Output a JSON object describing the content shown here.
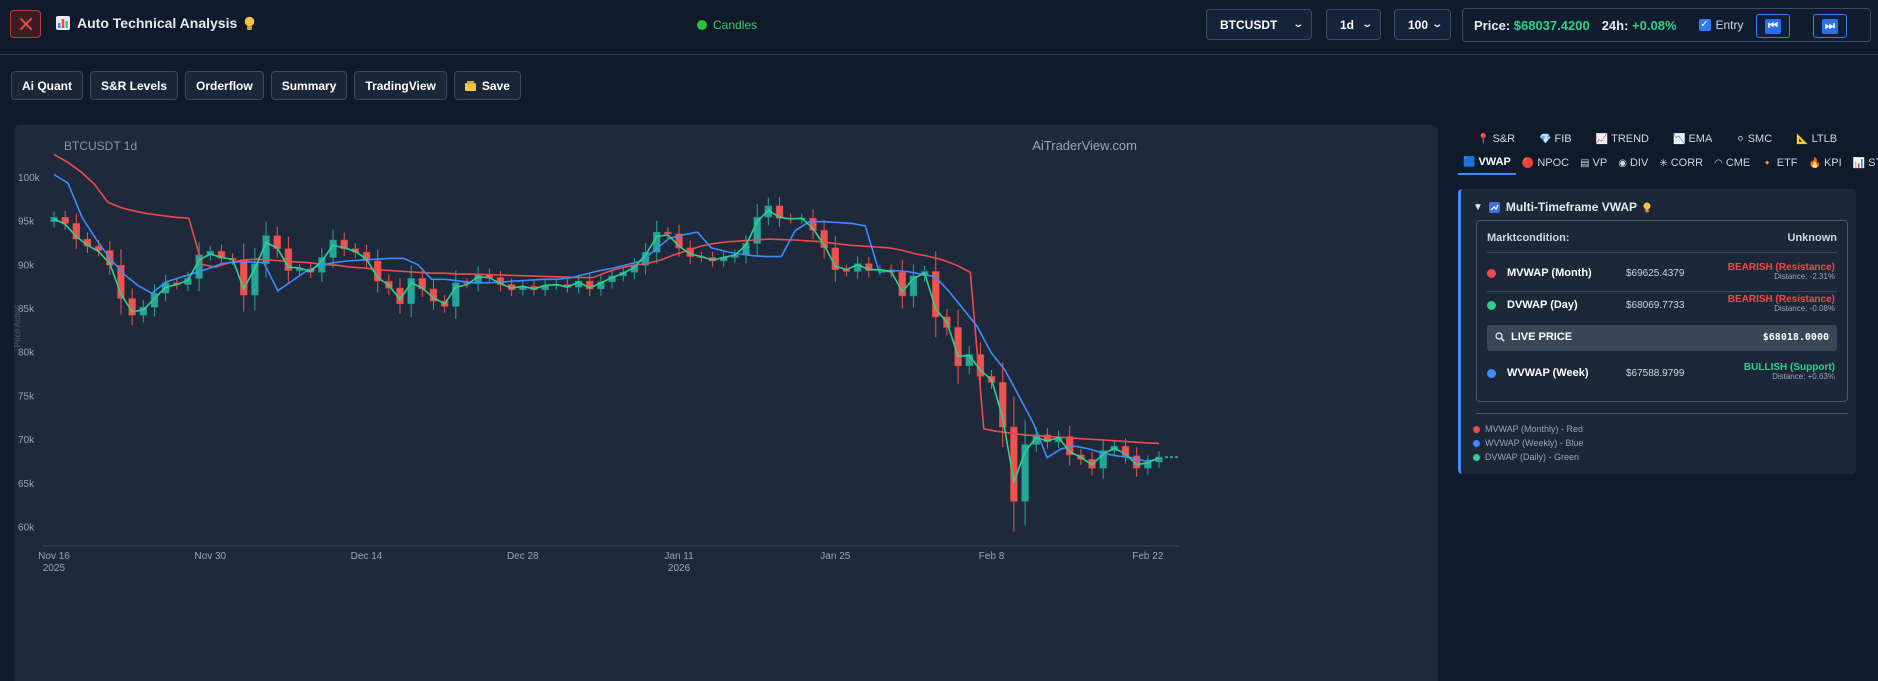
{
  "header": {
    "title": "Auto Technical Analysis",
    "mode_label": "Candles",
    "symbol": "BTCUSDT",
    "interval": "1d",
    "limit": "100",
    "price_label": "Price:",
    "price_value": "$68037.4200",
    "change_label": "24h:",
    "change_value": "+0.08%",
    "entry_label": "Entry"
  },
  "toolbar": {
    "buttons": [
      "Ai Quant",
      "S&R Levels",
      "Orderflow",
      "Summary",
      "TradingView",
      "Save"
    ]
  },
  "side_tabs": {
    "row1": [
      "S&R",
      "FIB",
      "TREND",
      "EMA",
      "SMC",
      "LTLB"
    ],
    "row2": [
      "VWAP",
      "NPOC",
      "VP",
      "DIV",
      "CORR",
      "CME",
      "ETF",
      "KPI",
      "STATS"
    ],
    "active": "VWAP"
  },
  "vwap_panel": {
    "title": "Multi-Timeframe VWAP",
    "market_label": "Marktcondition:",
    "market_value": "Unknown",
    "rows": [
      {
        "name": "MVWAP (Month)",
        "price": "$69625.4379",
        "status": "BEARISH (Resistance)",
        "distance": "Distance: -2.31%",
        "color": "#ef4a4a"
      },
      {
        "name": "DVWAP (Day)",
        "price": "$68069.7733",
        "status": "BEARISH (Resistance)",
        "distance": "Distance: -0.08%",
        "color": "#2ed18b"
      },
      {
        "name": "WVWAP (Week)",
        "price": "$67588.9799",
        "status": "BULLISH (Support)",
        "distance": "Distance: +0.63%",
        "color": "#3d8bff"
      }
    ],
    "live_label": "LIVE PRICE",
    "live_value": "$68018.0000",
    "legend": [
      "MVWAP (Monthly) - Red",
      "WVWAP (Weekly) - Blue",
      "DVWAP (Daily) - Green"
    ]
  },
  "chart_data": {
    "type": "candlestick",
    "title": "BTCUSDT 1d",
    "watermark": "AiTraderView.com",
    "ylabel": "Price Action",
    "ylim": [
      58000,
      104000
    ],
    "y_ticks": [
      60000,
      65000,
      70000,
      75000,
      80000,
      85000,
      90000,
      95000,
      100000
    ],
    "y_tick_labels": [
      "60k",
      "65k",
      "70k",
      "75k",
      "80k",
      "85k",
      "90k",
      "95k",
      "100k"
    ],
    "x_ticks": [
      {
        "label": "Nov 16",
        "sub": "2025",
        "index": 0
      },
      {
        "label": "Nov 30",
        "sub": "",
        "index": 14
      },
      {
        "label": "Dec 14",
        "sub": "",
        "index": 28
      },
      {
        "label": "Dec 28",
        "sub": "",
        "index": 42
      },
      {
        "label": "Jan 11",
        "sub": "2026",
        "index": 56
      },
      {
        "label": "Jan 25",
        "sub": "",
        "index": 70
      },
      {
        "label": "Feb 8",
        "sub": "",
        "index": 84
      },
      {
        "label": "Feb 22",
        "sub": "",
        "index": 98
      }
    ],
    "closes": [
      95500,
      94800,
      93000,
      92200,
      91700,
      90000,
      86200,
      84300,
      85200,
      86800,
      88000,
      87800,
      88500,
      91200,
      91600,
      90800,
      90600,
      86600,
      90200,
      93400,
      91900,
      89400,
      89600,
      89200,
      90900,
      92900,
      91900,
      91500,
      90500,
      88200,
      87400,
      85600,
      88500,
      87300,
      85900,
      85300,
      88000,
      87900,
      89000,
      88600,
      87800,
      87200,
      87600,
      87200,
      87700,
      87800,
      87500,
      88200,
      87300,
      88100,
      88800,
      89200,
      90000,
      91500,
      93800,
      93600,
      92000,
      91000,
      90900,
      90500,
      90900,
      91200,
      92500,
      95500,
      96800,
      95400,
      95300,
      95400,
      94000,
      92000,
      89500,
      89300,
      90200,
      89400,
      89500,
      89200,
      86500,
      88800,
      89300,
      84100,
      82900,
      78500,
      79800,
      77300,
      76600,
      71500,
      63000,
      69500,
      70600,
      69800,
      70400,
      68300,
      67800,
      66800,
      68800,
      69300,
      68200,
      66800,
      67500,
      68050
    ],
    "vwap_monthly": [
      102700,
      101800,
      100700,
      99300,
      97200,
      96600,
      96200,
      95900,
      95700,
      95500,
      95400,
      90100,
      89800,
      90300,
      90600,
      90700,
      90600,
      90500,
      90400,
      90300,
      90100,
      90000,
      89800,
      89700,
      89500,
      89400,
      89300,
      89200,
      89100,
      89100,
      89000,
      89000,
      88950,
      88900,
      88850,
      88800,
      88750,
      88700,
      88650,
      88600,
      88600,
      89200,
      89700,
      90000,
      90200,
      90600,
      91200,
      91700,
      92200,
      92500,
      92700,
      92800,
      92900,
      93000,
      92950,
      92900,
      92800,
      92700,
      92500,
      92300,
      92200,
      92100,
      92000,
      91700,
      91300,
      91000,
      90600,
      90000,
      89200,
      71300,
      71000,
      70800,
      70600,
      70500,
      70400,
      70300,
      70200,
      70100,
      70000,
      69900,
      69800,
      69700,
      69625
    ],
    "vwap_weekly": [
      100400,
      99400,
      95500,
      93000,
      90800,
      89000,
      87700,
      86800,
      88100,
      88600,
      89100,
      89600,
      90200,
      90400,
      90400,
      90300,
      87100,
      88200,
      89300,
      90000,
      90300,
      90500,
      90600,
      90700,
      90800,
      90800,
      90100,
      88400,
      88400,
      88200,
      88000,
      88000,
      88100,
      88200,
      88300,
      88400,
      88400,
      88600,
      89000,
      89400,
      89700,
      90100,
      90500,
      91800,
      93100,
      93500,
      93800,
      92000,
      91600,
      91300,
      91100,
      91000,
      91000,
      94000,
      95000,
      95000,
      94900,
      94800,
      94500,
      89200,
      89400,
      89300,
      89000,
      88700,
      87000,
      85000,
      83000,
      80000,
      78000,
      75000,
      72000,
      68000,
      69000,
      69300,
      69000,
      68500,
      68200,
      68000,
      67600,
      67800
    ],
    "vwap_daily": [
      95300,
      94700,
      93300,
      92300,
      91600,
      90200,
      86700,
      84700,
      84900,
      86200,
      87500,
      87800,
      88300,
      90600,
      91300,
      90900,
      90700,
      87300,
      89700,
      92600,
      92000,
      89800,
      89700,
      89300,
      90500,
      92300,
      92000,
      91600,
      90700,
      88600,
      87700,
      86100,
      88000,
      87400,
      86300,
      85600,
      87500,
      87800,
      88700,
      88600,
      87900,
      87400,
      87600,
      87300,
      87700,
      87800,
      87500,
      88100,
      87400,
      88000,
      88600,
      89100,
      89800,
      91200,
      93300,
      93500,
      92200,
      91300,
      91000,
      90600,
      90900,
      91200,
      92300,
      95000,
      96300,
      95500,
      95300,
      95400,
      94200,
      92300,
      89900,
      89500,
      90100,
      89500,
      89500,
      89300,
      87000,
      88500,
      89100,
      85000,
      83500,
      79600,
      79700,
      78000,
      76900,
      72600,
      65200,
      68700,
      70300,
      69900,
      70300,
      68700,
      68000,
      67200,
      68400,
      69100,
      68400,
      67200,
      67400,
      68000
    ]
  }
}
